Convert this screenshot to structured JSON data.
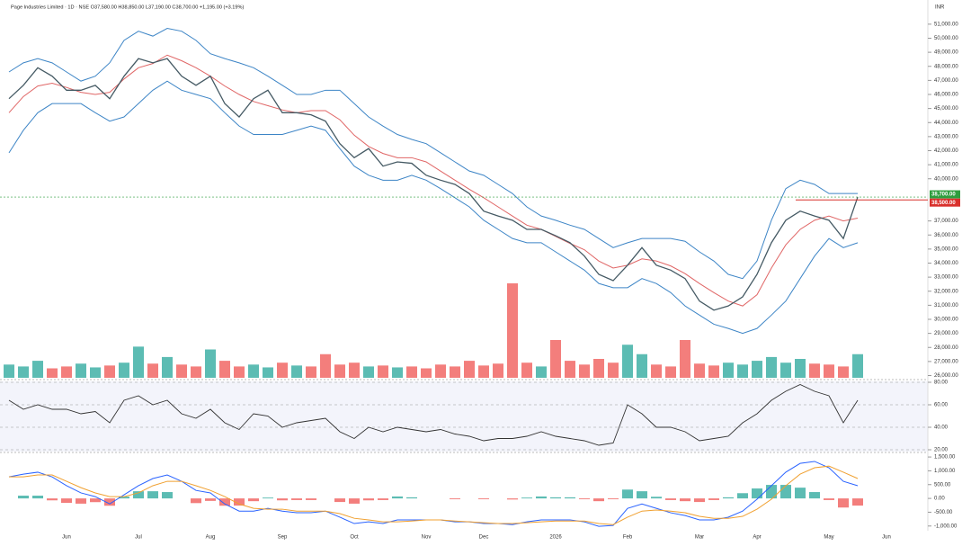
{
  "chart_data": [
    {
      "type": "line",
      "title": "Page Industries Limited · 1D · NSE  O37,580.00  H38,850.00  L37,190.00  C38,700.00  +1,195.00 (+3.19%)",
      "ylabel": "INR",
      "categories": [
        null,
        null,
        null,
        null,
        "Jun",
        null,
        null,
        null,
        null,
        "Jul",
        null,
        null,
        null,
        null,
        "Aug",
        null,
        null,
        null,
        null,
        "Sep",
        null,
        null,
        null,
        null,
        "Oct",
        null,
        null,
        null,
        null,
        "Nov",
        null,
        null,
        null,
        "Dec",
        null,
        null,
        null,
        null,
        "2026",
        null,
        null,
        null,
        null,
        "Feb",
        null,
        null,
        null,
        null,
        "Mar",
        null,
        null,
        null,
        "Apr",
        null,
        null,
        null,
        null,
        "May",
        null,
        null,
        null,
        "Jun"
      ],
      "series": [
        {
          "name": "Close",
          "color": "#455a64",
          "values": [
            45700,
            46650,
            47900,
            47300,
            46300,
            46300,
            46650,
            45700,
            47300,
            48550,
            48250,
            48550,
            47300,
            46650,
            47300,
            45350,
            44400,
            45700,
            46300,
            44700,
            44700,
            44550,
            44100,
            42500,
            41500,
            42150,
            40900,
            41200,
            41100,
            40250,
            39900,
            39600,
            38950,
            37700,
            37350,
            37050,
            36400,
            36400,
            35950,
            35450,
            34500,
            33200,
            32750,
            33850,
            35100,
            33850,
            33500,
            32900,
            31300,
            30650,
            30950,
            31600,
            33200,
            35450,
            37050,
            37700,
            37350,
            37050,
            35750,
            38700,
            null,
            null
          ]
        },
        {
          "name": "Upper Band",
          "color": "#3d85c6",
          "values": [
            47600,
            48250,
            48550,
            48250,
            47600,
            46950,
            47300,
            48250,
            49850,
            50500,
            50150,
            50700,
            50500,
            49850,
            48900,
            48550,
            48250,
            47900,
            47300,
            46650,
            46000,
            46000,
            46300,
            46300,
            45350,
            44400,
            43750,
            43150,
            42800,
            42500,
            41850,
            41200,
            40550,
            40250,
            39600,
            38950,
            38000,
            37350,
            37050,
            36700,
            36400,
            35750,
            35100,
            35450,
            35750,
            35750,
            35750,
            35550,
            34800,
            34150,
            33200,
            32900,
            34150,
            37050,
            39300,
            39900,
            39600,
            38950,
            38950,
            38950,
            null,
            null
          ]
        },
        {
          "name": "Basis",
          "color": "#e06666",
          "values": [
            44700,
            45850,
            46600,
            46800,
            46500,
            46150,
            46000,
            46150,
            47100,
            47900,
            48200,
            48800,
            48400,
            47900,
            47300,
            46600,
            46000,
            45500,
            45200,
            44900,
            44700,
            44850,
            44850,
            44200,
            43100,
            42300,
            41800,
            41500,
            41500,
            41200,
            40550,
            39900,
            39250,
            38650,
            38000,
            37350,
            36700,
            36400,
            35900,
            35400,
            34950,
            34150,
            33650,
            33850,
            34300,
            34150,
            33800,
            33250,
            32550,
            31900,
            31300,
            30950,
            31750,
            33650,
            35300,
            36400,
            37050,
            37350,
            37000,
            37200,
            null,
            null
          ]
        },
        {
          "name": "Lower Band",
          "color": "#3d85c6",
          "values": [
            41850,
            43450,
            44700,
            45350,
            45350,
            45350,
            44700,
            44100,
            44400,
            45350,
            46300,
            46950,
            46300,
            46000,
            45700,
            44700,
            43750,
            43150,
            43150,
            43150,
            43450,
            43750,
            43450,
            42150,
            40900,
            40250,
            39900,
            39900,
            40250,
            39900,
            39300,
            38650,
            38000,
            37050,
            36400,
            35750,
            35450,
            35450,
            34800,
            34150,
            33500,
            32550,
            32250,
            32250,
            32900,
            32550,
            31900,
            30950,
            30300,
            29650,
            29350,
            29000,
            29350,
            30300,
            31300,
            32900,
            34500,
            35750,
            35100,
            35450,
            null,
            null
          ]
        },
        {
          "name": "Volume",
          "type": "bar",
          "axis": "y2",
          "color": "#26a69a",
          "down_color": "#ef5350",
          "values": [
            14,
            12,
            18,
            10,
            12,
            15,
            11,
            13,
            16,
            33,
            15,
            22,
            14,
            12,
            30,
            18,
            12,
            14,
            11,
            16,
            13,
            12,
            25,
            14,
            16,
            12,
            13,
            11,
            12,
            10,
            14,
            12,
            18,
            13,
            15,
            100,
            16,
            12,
            40,
            18,
            14,
            20,
            16,
            35,
            25,
            14,
            12,
            40,
            15,
            13,
            16,
            14,
            18,
            22,
            16,
            20,
            15,
            14,
            12,
            25,
            null,
            null
          ]
        }
      ],
      "ylim": [
        25840,
        52400
      ],
      "y2lim": [
        0,
        100
      ],
      "yticks": [
        {
          "value": 26000,
          "label": "26,000.00"
        },
        {
          "value": 27000,
          "label": "27,000.00"
        },
        {
          "value": 28000,
          "label": "28,000.00"
        },
        {
          "value": 29000,
          "label": "29,000.00"
        },
        {
          "value": 30000,
          "label": "30,000.00"
        },
        {
          "value": 31000,
          "label": "31,000.00"
        },
        {
          "value": 32000,
          "label": "32,000.00"
        },
        {
          "value": 33000,
          "label": "33,000.00"
        },
        {
          "value": 34000,
          "label": "34,000.00"
        },
        {
          "value": 35000,
          "label": "35,000.00"
        },
        {
          "value": 36000,
          "label": "36,000.00"
        },
        {
          "value": 37000,
          "label": "37,000.00"
        },
        {
          "value": 40000,
          "label": "40,000.00"
        },
        {
          "value": 41000,
          "label": "41,000.00"
        },
        {
          "value": 42000,
          "label": "42,000.00"
        },
        {
          "value": 43000,
          "label": "43,000.00"
        },
        {
          "value": 44000,
          "label": "44,000.00"
        },
        {
          "value": 45000,
          "label": "45,000.00"
        },
        {
          "value": 46000,
          "label": "46,000.00"
        },
        {
          "value": 47000,
          "label": "47,000.00"
        },
        {
          "value": 48000,
          "label": "48,000.00"
        },
        {
          "value": 49000,
          "label": "49,000.00"
        },
        {
          "value": 50000,
          "label": "50,000.00"
        },
        {
          "value": 51000,
          "label": "51,000.00"
        }
      ],
      "price_labels": [
        {
          "value": 38700,
          "label": "38,700.00",
          "color": "#2e9e3e"
        },
        {
          "value": 38500,
          "label": "38,500.00",
          "color": "#d9302c"
        }
      ]
    },
    {
      "type": "line",
      "series": [
        {
          "name": "RSI",
          "color": "#333333",
          "values": [
            64,
            56,
            60,
            56,
            56,
            52,
            54,
            44,
            64,
            68,
            60,
            64,
            52,
            48,
            56,
            44,
            38,
            52,
            50,
            40,
            44,
            46,
            48,
            36,
            30,
            40,
            36,
            40,
            38,
            36,
            38,
            34,
            32,
            28,
            30,
            30,
            32,
            36,
            32,
            30,
            28,
            24,
            26,
            60,
            52,
            40,
            40,
            36,
            28,
            30,
            32,
            44,
            52,
            64,
            72,
            78,
            72,
            68,
            44,
            64,
            null,
            null
          ]
        }
      ],
      "ylim": [
        16,
        84
      ],
      "yticks": [
        {
          "value": 20,
          "label": "20.00"
        },
        {
          "value": 40,
          "label": "40.00"
        },
        {
          "value": 60,
          "label": "60.00"
        },
        {
          "value": 80,
          "label": "80.00"
        }
      ]
    },
    {
      "type": "line",
      "series": [
        {
          "name": "Histogram",
          "type": "bar",
          "color": "#26a69a",
          "down_color": "#ef5350",
          "values": [
            0,
            100,
            100,
            -70,
            -160,
            -190,
            -135,
            -265,
            65,
            260,
            260,
            230,
            0,
            -170,
            -90,
            -265,
            -260,
            -100,
            30,
            -70,
            -60,
            -60,
            0,
            -130,
            -190,
            -70,
            -60,
            70,
            40,
            0,
            0,
            -30,
            0,
            -30,
            0,
            -40,
            30,
            70,
            40,
            40,
            -30,
            -100,
            -30,
            320,
            260,
            60,
            -60,
            -100,
            -130,
            -60,
            40,
            190,
            360,
            490,
            490,
            390,
            230,
            -60,
            -330,
            -260,
            null,
            null
          ]
        },
        {
          "name": "MACD",
          "color": "#2962ff",
          "values": [
            780,
            880,
            950,
            780,
            460,
            200,
            65,
            -200,
            130,
            460,
            720,
            850,
            620,
            290,
            200,
            -200,
            -460,
            -460,
            -360,
            -460,
            -520,
            -520,
            -460,
            -680,
            -910,
            -850,
            -910,
            -780,
            -780,
            -780,
            -780,
            -850,
            -850,
            -910,
            -910,
            -950,
            -850,
            -780,
            -780,
            -780,
            -850,
            -1010,
            -980,
            -360,
            -200,
            -360,
            -520,
            -620,
            -780,
            -780,
            -680,
            -460,
            -30,
            460,
            950,
            1270,
            1340,
            1110,
            620,
            460,
            null,
            null
          ]
        },
        {
          "name": "Signal",
          "color": "#f0a030",
          "values": [
            780,
            780,
            850,
            850,
            620,
            390,
            200,
            65,
            65,
            200,
            460,
            620,
            620,
            460,
            290,
            65,
            -200,
            -360,
            -390,
            -390,
            -460,
            -460,
            -460,
            -550,
            -720,
            -780,
            -850,
            -850,
            -820,
            -780,
            -780,
            -820,
            -850,
            -880,
            -910,
            -910,
            -880,
            -850,
            -820,
            -820,
            -820,
            -910,
            -950,
            -680,
            -460,
            -420,
            -460,
            -520,
            -650,
            -720,
            -720,
            -650,
            -390,
            -30,
            460,
            880,
            1110,
            1170,
            950,
            720,
            null,
            null
          ]
        }
      ],
      "ylim": [
        -1170,
        1600
      ],
      "yticks": [
        {
          "value": -1000,
          "label": "-1,000.00"
        },
        {
          "value": -500,
          "label": "-500.00"
        },
        {
          "value": 0,
          "label": "0.00"
        },
        {
          "value": 500,
          "label": "500.00"
        },
        {
          "value": 1000,
          "label": "1,000.00"
        },
        {
          "value": 1500,
          "label": "1,500.00"
        }
      ]
    }
  ]
}
